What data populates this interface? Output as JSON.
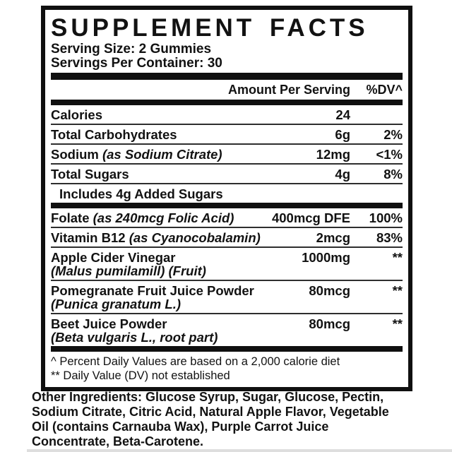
{
  "panel": {
    "title": "SUPPLEMENT FACTS",
    "serving_size": "Serving Size: 2 Gummies",
    "servings_per_container": "Servings Per Container: 30",
    "columns": {
      "amount": "Amount Per Serving",
      "dv": "%DV^"
    },
    "rows": [
      {
        "name": "Calories",
        "amount": "24",
        "dv": ""
      },
      {
        "name": "Total Carbohydrates",
        "amount": "6g",
        "dv": "2%"
      },
      {
        "name": "Sodium",
        "note": "(as Sodium Citrate)",
        "amount": "12mg",
        "dv": "<1%"
      },
      {
        "name": "Total Sugars",
        "amount": "4g",
        "dv": "8%"
      },
      {
        "name": "Includes 4g Added Sugars",
        "amount": "",
        "dv": ""
      }
    ],
    "ingredients": [
      {
        "name": "Folate",
        "note": "(as 240mcg Folic Acid)",
        "amount": "400mcg DFE",
        "dv": "100%"
      },
      {
        "name": "Vitamin B12",
        "note": "(as Cyanocobalamin)",
        "amount": "2mcg",
        "dv": "83%"
      },
      {
        "name": "Apple Cider Vinegar",
        "latin": "(Malus pumilamill) (Fruit)",
        "amount": "1000mg",
        "dv": "**"
      },
      {
        "name": "Pomegranate Fruit Juice Powder",
        "latin": "(Punica granatum L.)",
        "amount": "80mcg",
        "dv": "**"
      },
      {
        "name": "Beet Juice Powder",
        "latin": "(Beta vulgaris L., root part)",
        "amount": "80mcg",
        "dv": "**"
      }
    ],
    "footnotes": [
      "^ Percent Daily Values are based on a 2,000 calorie diet",
      "** Daily Value (DV) not established"
    ]
  },
  "other_ingredients": {
    "lines": [
      "Other Ingredients: Glucose Syrup, Sugar, Glucose, Pectin,",
      "Sodium Citrate, Citric Acid, Natural Apple Flavor, Vegetable",
      "Oil (contains Carnauba Wax), Purple Carrot Juice",
      "Concentrate, Beta-Carotene."
    ]
  },
  "colors": {
    "text": "#121212",
    "panel_border": "#101010",
    "row_separator": "#2e2e2e",
    "bottom_strip": "#dedede"
  }
}
